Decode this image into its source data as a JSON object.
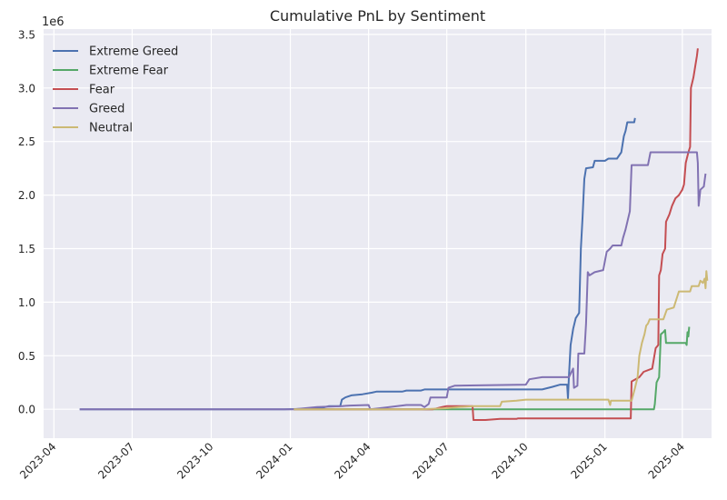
{
  "chart_data": {
    "type": "line",
    "title": "Cumulative PnL by Sentiment",
    "xlabel": "",
    "ylabel": "",
    "y_scale_label": "1e6",
    "y_unit": 1000000,
    "xlim": [
      "2023-03-20",
      "2025-05-05"
    ],
    "ylim": [
      -0.27,
      3.55
    ],
    "x_ticks": [
      "2023-04-01",
      "2023-07-01",
      "2023-10-01",
      "2024-01-01",
      "2024-04-01",
      "2024-07-01",
      "2024-10-01",
      "2025-01-01",
      "2025-04-01"
    ],
    "x_tick_labels": [
      "2023-04",
      "2023-07",
      "2023-10",
      "2024-01",
      "2024-04",
      "2024-07",
      "2024-10",
      "2025-01",
      "2025-04"
    ],
    "y_ticks": [
      0.0,
      0.5,
      1.0,
      1.5,
      2.0,
      2.5,
      3.0,
      3.5
    ],
    "y_tick_labels": [
      "0.0",
      "0.5",
      "1.0",
      "1.5",
      "2.0",
      "2.5",
      "3.0",
      "3.5"
    ],
    "grid": true,
    "legend_position": "upper-left",
    "series": [
      {
        "name": "Extreme Greed",
        "color": "#4c72b0",
        "points": [
          [
            "2023-05-01",
            0.0
          ],
          [
            "2023-12-25",
            0.0
          ],
          [
            "2024-01-20",
            0.005
          ],
          [
            "2024-02-05",
            0.01
          ],
          [
            "2024-02-15",
            0.03
          ],
          [
            "2024-02-28",
            0.03
          ],
          [
            "2024-03-01",
            0.09
          ],
          [
            "2024-03-05",
            0.11
          ],
          [
            "2024-03-12",
            0.13
          ],
          [
            "2024-03-25",
            0.14
          ],
          [
            "2024-04-05",
            0.155
          ],
          [
            "2024-04-10",
            0.165
          ],
          [
            "2024-05-10",
            0.165
          ],
          [
            "2024-05-15",
            0.175
          ],
          [
            "2024-06-01",
            0.175
          ],
          [
            "2024-06-05",
            0.185
          ],
          [
            "2024-07-01",
            0.185
          ],
          [
            "2024-10-20",
            0.185
          ],
          [
            "2024-11-01",
            0.21
          ],
          [
            "2024-11-10",
            0.23
          ],
          [
            "2024-11-18",
            0.23
          ],
          [
            "2024-11-19",
            0.1
          ],
          [
            "2024-11-20",
            0.3
          ],
          [
            "2024-11-22",
            0.6
          ],
          [
            "2024-11-25",
            0.75
          ],
          [
            "2024-11-28",
            0.85
          ],
          [
            "2024-12-02",
            0.9
          ],
          [
            "2024-12-04",
            1.5
          ],
          [
            "2024-12-06",
            1.8
          ],
          [
            "2024-12-08",
            2.15
          ],
          [
            "2024-12-10",
            2.25
          ],
          [
            "2024-12-18",
            2.26
          ],
          [
            "2024-12-20",
            2.32
          ],
          [
            "2025-01-01",
            2.32
          ],
          [
            "2025-01-05",
            2.34
          ],
          [
            "2025-01-15",
            2.34
          ],
          [
            "2025-01-20",
            2.4
          ],
          [
            "2025-01-23",
            2.55
          ],
          [
            "2025-01-25",
            2.6
          ],
          [
            "2025-01-27",
            2.68
          ],
          [
            "2025-02-04",
            2.68
          ],
          [
            "2025-02-05",
            2.72
          ]
        ]
      },
      {
        "name": "Extreme Fear",
        "color": "#55a868",
        "points": [
          [
            "2024-01-05",
            0.0
          ],
          [
            "2025-02-27",
            0.0
          ],
          [
            "2025-02-28",
            0.05
          ],
          [
            "2025-03-02",
            0.25
          ],
          [
            "2025-03-05",
            0.3
          ],
          [
            "2025-03-07",
            0.7
          ],
          [
            "2025-03-10",
            0.72
          ],
          [
            "2025-03-12",
            0.74
          ],
          [
            "2025-03-13",
            0.62
          ],
          [
            "2025-03-20",
            0.62
          ],
          [
            "2025-04-01",
            0.62
          ],
          [
            "2025-04-05",
            0.62
          ],
          [
            "2025-04-06",
            0.6
          ],
          [
            "2025-04-07",
            0.72
          ],
          [
            "2025-04-08",
            0.68
          ],
          [
            "2025-04-09",
            0.77
          ]
        ]
      },
      {
        "name": "Fear",
        "color": "#c44e52",
        "points": [
          [
            "2024-01-05",
            0.0
          ],
          [
            "2024-06-15",
            0.0
          ],
          [
            "2024-06-25",
            0.02
          ],
          [
            "2024-07-01",
            0.03
          ],
          [
            "2024-07-31",
            0.03
          ],
          [
            "2024-08-01",
            -0.1
          ],
          [
            "2024-08-15",
            -0.1
          ],
          [
            "2024-09-01",
            -0.09
          ],
          [
            "2024-09-20",
            -0.09
          ],
          [
            "2024-09-22",
            -0.085
          ],
          [
            "2025-01-31",
            -0.085
          ],
          [
            "2025-02-01",
            0.26
          ],
          [
            "2025-02-10",
            0.3
          ],
          [
            "2025-02-15",
            0.35
          ],
          [
            "2025-02-25",
            0.38
          ],
          [
            "2025-03-01",
            0.57
          ],
          [
            "2025-03-04",
            0.6
          ],
          [
            "2025-03-05",
            1.25
          ],
          [
            "2025-03-07",
            1.3
          ],
          [
            "2025-03-09",
            1.45
          ],
          [
            "2025-03-12",
            1.5
          ],
          [
            "2025-03-13",
            1.75
          ],
          [
            "2025-03-17",
            1.82
          ],
          [
            "2025-03-20",
            1.9
          ],
          [
            "2025-03-24",
            1.97
          ],
          [
            "2025-03-28",
            2.0
          ],
          [
            "2025-04-01",
            2.05
          ],
          [
            "2025-04-03",
            2.1
          ],
          [
            "2025-04-05",
            2.3
          ],
          [
            "2025-04-08",
            2.4
          ],
          [
            "2025-04-10",
            2.45
          ],
          [
            "2025-04-11",
            3.0
          ],
          [
            "2025-04-14",
            3.1
          ],
          [
            "2025-04-16",
            3.2
          ],
          [
            "2025-04-18",
            3.3
          ],
          [
            "2025-04-19",
            3.37
          ]
        ]
      },
      {
        "name": "Greed",
        "color": "#8172b2",
        "points": [
          [
            "2023-05-01",
            0.0
          ],
          [
            "2024-01-05",
            0.0
          ],
          [
            "2024-02-01",
            0.02
          ],
          [
            "2024-03-01",
            0.03
          ],
          [
            "2024-03-10",
            0.035
          ],
          [
            "2024-04-01",
            0.04
          ],
          [
            "2024-04-03",
            0.0
          ],
          [
            "2024-04-20",
            0.015
          ],
          [
            "2024-05-15",
            0.04
          ],
          [
            "2024-06-01",
            0.04
          ],
          [
            "2024-06-05",
            0.02
          ],
          [
            "2024-06-10",
            0.05
          ],
          [
            "2024-06-12",
            0.11
          ],
          [
            "2024-07-01",
            0.11
          ],
          [
            "2024-07-03",
            0.2
          ],
          [
            "2024-07-10",
            0.22
          ],
          [
            "2024-10-01",
            0.23
          ],
          [
            "2024-10-05",
            0.28
          ],
          [
            "2024-10-20",
            0.3
          ],
          [
            "2024-11-20",
            0.3
          ],
          [
            "2024-11-25",
            0.38
          ],
          [
            "2024-11-26",
            0.2
          ],
          [
            "2024-11-30",
            0.22
          ],
          [
            "2024-12-01",
            0.52
          ],
          [
            "2024-12-08",
            0.52
          ],
          [
            "2024-12-10",
            0.8
          ],
          [
            "2024-12-12",
            1.28
          ],
          [
            "2024-12-14",
            1.25
          ],
          [
            "2024-12-20",
            1.28
          ],
          [
            "2024-12-30",
            1.3
          ],
          [
            "2025-01-03",
            1.47
          ],
          [
            "2025-01-07",
            1.5
          ],
          [
            "2025-01-10",
            1.53
          ],
          [
            "2025-01-20",
            1.53
          ],
          [
            "2025-01-22",
            1.6
          ],
          [
            "2025-01-25",
            1.68
          ],
          [
            "2025-01-30",
            1.85
          ],
          [
            "2025-02-01",
            2.28
          ],
          [
            "2025-02-20",
            2.28
          ],
          [
            "2025-02-23",
            2.4
          ],
          [
            "2025-04-18",
            2.4
          ],
          [
            "2025-04-19",
            2.3
          ],
          [
            "2025-04-20",
            1.9
          ],
          [
            "2025-04-22",
            2.05
          ],
          [
            "2025-04-26",
            2.08
          ],
          [
            "2025-04-28",
            2.2
          ]
        ]
      },
      {
        "name": "Neutral",
        "color": "#ccb974",
        "points": [
          [
            "2024-01-05",
            0.0
          ],
          [
            "2024-06-01",
            0.0
          ],
          [
            "2024-07-01",
            0.01
          ],
          [
            "2024-07-15",
            0.02
          ],
          [
            "2024-08-01",
            0.03
          ],
          [
            "2024-09-01",
            0.03
          ],
          [
            "2024-09-03",
            0.07
          ],
          [
            "2024-09-20",
            0.08
          ],
          [
            "2024-10-01",
            0.09
          ],
          [
            "2024-11-10",
            0.09
          ],
          [
            "2025-01-05",
            0.09
          ],
          [
            "2025-01-07",
            0.04
          ],
          [
            "2025-01-08",
            0.08
          ],
          [
            "2025-02-01",
            0.08
          ],
          [
            "2025-02-05",
            0.2
          ],
          [
            "2025-02-08",
            0.3
          ],
          [
            "2025-02-10",
            0.5
          ],
          [
            "2025-02-13",
            0.62
          ],
          [
            "2025-02-16",
            0.7
          ],
          [
            "2025-02-18",
            0.78
          ],
          [
            "2025-02-20",
            0.8
          ],
          [
            "2025-02-22",
            0.84
          ],
          [
            "2025-03-10",
            0.84
          ],
          [
            "2025-03-14",
            0.93
          ],
          [
            "2025-03-22",
            0.95
          ],
          [
            "2025-03-26",
            1.05
          ],
          [
            "2025-03-28",
            1.1
          ],
          [
            "2025-04-10",
            1.1
          ],
          [
            "2025-04-12",
            1.15
          ],
          [
            "2025-04-20",
            1.15
          ],
          [
            "2025-04-22",
            1.2
          ],
          [
            "2025-04-25",
            1.18
          ],
          [
            "2025-04-27",
            1.22
          ],
          [
            "2025-04-28",
            1.13
          ],
          [
            "2025-04-29",
            1.29
          ],
          [
            "2025-04-30",
            1.2
          ]
        ]
      }
    ]
  }
}
